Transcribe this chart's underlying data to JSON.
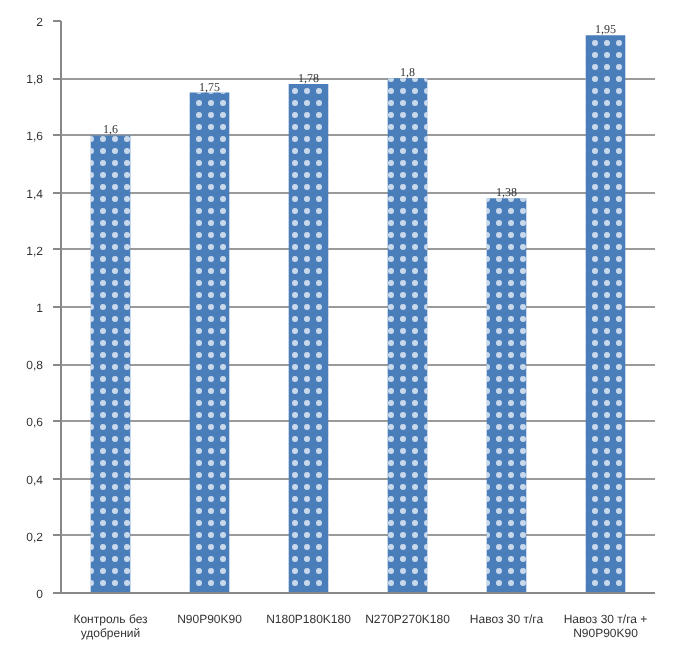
{
  "chart_data": {
    "type": "bar",
    "categories": [
      "Контроль без удобрений",
      "N90P90K90",
      "N180P180K180",
      "N270P270K180",
      "Навоз 30 т/га",
      "Навоз 30 т/га + N90P90K90"
    ],
    "values": [
      1.6,
      1.75,
      1.78,
      1.8,
      1.38,
      1.95
    ],
    "value_labels": [
      "1,6",
      "1,75",
      "1,78",
      "1,8",
      "1,38",
      "1,95"
    ],
    "color": "#4a7ebb",
    "ylim": [
      0,
      2
    ],
    "yticks": [
      {
        "value": 0,
        "label": "0"
      },
      {
        "value": 0.2,
        "label": "0,2"
      },
      {
        "value": 0.4,
        "label": "0,4"
      },
      {
        "value": 0.6,
        "label": "0,6"
      },
      {
        "value": 0.8,
        "label": "0,8"
      },
      {
        "value": 1,
        "label": "1"
      },
      {
        "value": 1.2,
        "label": "1,2"
      },
      {
        "value": 1.4,
        "label": "1,4"
      },
      {
        "value": 1.6,
        "label": "1,6"
      },
      {
        "value": 1.8,
        "label": "1,8"
      },
      {
        "value": 2,
        "label": "2"
      }
    ],
    "grid": "y"
  }
}
